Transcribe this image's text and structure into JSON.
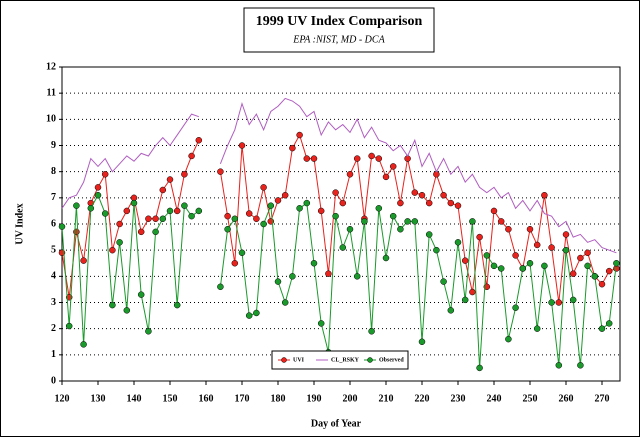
{
  "chart_data": {
    "type": "line",
    "title": "1999 UV Index Comparison",
    "subtitle": "EPA :NIST, MD - DCA",
    "x_label": "Day of Year",
    "y_label": "UV Index",
    "x": [
      120,
      122,
      124,
      126,
      128,
      130,
      132,
      134,
      136,
      138,
      140,
      142,
      144,
      146,
      148,
      150,
      152,
      154,
      156,
      158,
      160,
      162,
      164,
      166,
      168,
      170,
      172,
      174,
      176,
      178,
      180,
      182,
      184,
      186,
      188,
      190,
      192,
      194,
      196,
      198,
      200,
      202,
      204,
      206,
      208,
      210,
      212,
      214,
      216,
      218,
      220,
      222,
      224,
      226,
      228,
      230,
      232,
      234,
      236,
      238,
      240,
      242,
      244,
      246,
      248,
      250,
      252,
      254,
      256,
      258,
      260,
      262,
      264,
      266,
      268,
      270,
      272,
      274
    ],
    "series": [
      {
        "name": "UVI",
        "color": "#e8221c",
        "marker": true,
        "values": [
          4.9,
          3.2,
          5.7,
          4.6,
          6.8,
          7.4,
          7.9,
          5.0,
          6.0,
          6.5,
          7.0,
          5.7,
          6.2,
          6.2,
          7.3,
          7.7,
          6.5,
          7.9,
          8.6,
          9.2,
          null,
          null,
          8.0,
          6.3,
          4.5,
          9.0,
          6.4,
          6.2,
          7.4,
          6.1,
          6.9,
          7.1,
          8.9,
          9.4,
          8.5,
          8.5,
          6.5,
          4.1,
          7.2,
          6.8,
          7.9,
          8.5,
          6.2,
          8.6,
          8.5,
          7.8,
          8.2,
          6.8,
          8.5,
          7.2,
          7.1,
          6.8,
          7.9,
          7.1,
          6.8,
          6.7,
          4.6,
          3.4,
          5.5,
          3.6,
          6.5,
          6.1,
          5.8,
          4.8,
          4.3,
          5.8,
          5.2,
          7.1,
          5.1,
          3.0,
          5.6,
          4.1,
          4.7,
          4.9,
          4.0,
          3.7,
          4.2,
          4.3
        ]
      },
      {
        "name": "CL_RSKY",
        "color": "#b05ec0",
        "marker": false,
        "values": [
          6.6,
          7.0,
          7.1,
          7.6,
          8.5,
          8.2,
          8.5,
          8.0,
          8.3,
          8.6,
          8.4,
          8.7,
          8.6,
          9.0,
          9.3,
          9.0,
          9.4,
          9.8,
          10.2,
          10.1,
          null,
          null,
          8.3,
          9.0,
          9.6,
          10.6,
          9.8,
          10.2,
          9.6,
          10.3,
          10.5,
          10.8,
          10.7,
          10.5,
          10.1,
          10.3,
          9.4,
          9.9,
          9.6,
          9.8,
          9.5,
          10.0,
          9.3,
          9.7,
          9.2,
          9.1,
          8.8,
          9.0,
          8.6,
          9.2,
          8.2,
          8.7,
          8.0,
          8.5,
          7.9,
          8.2,
          7.6,
          7.9,
          7.4,
          7.2,
          7.4,
          7.0,
          7.2,
          6.6,
          6.9,
          6.5,
          6.9,
          6.4,
          6.3,
          5.9,
          6.1,
          5.5,
          5.6,
          5.3,
          5.4,
          5.1,
          5.0,
          4.9
        ]
      },
      {
        "name": "Observed",
        "color": "#1a9a2a",
        "marker": true,
        "values": [
          5.9,
          2.1,
          6.7,
          1.4,
          6.6,
          7.1,
          6.4,
          2.9,
          5.3,
          2.7,
          6.8,
          3.3,
          1.9,
          5.7,
          6.2,
          6.5,
          2.9,
          6.7,
          6.3,
          6.5,
          null,
          null,
          3.6,
          5.8,
          6.2,
          4.9,
          2.5,
          2.6,
          6.0,
          6.7,
          3.8,
          3.0,
          4.0,
          6.6,
          6.8,
          4.5,
          2.2,
          1.1,
          6.3,
          5.1,
          5.8,
          4.0,
          6.1,
          1.9,
          6.6,
          4.7,
          6.3,
          5.8,
          6.1,
          6.1,
          1.5,
          5.6,
          5.0,
          3.8,
          2.7,
          5.3,
          3.1,
          6.1,
          0.5,
          4.8,
          4.4,
          4.3,
          1.6,
          2.8,
          4.3,
          4.5,
          2.0,
          4.4,
          3.0,
          0.6,
          5.0,
          3.1,
          0.6,
          4.4,
          4.0,
          2.0,
          2.2,
          4.5
        ]
      }
    ],
    "xlim": [
      120,
      275
    ],
    "xticks": [
      120,
      130,
      140,
      150,
      160,
      170,
      180,
      190,
      200,
      210,
      220,
      230,
      240,
      250,
      260,
      270
    ],
    "ylim": [
      0,
      12
    ],
    "yticks": [
      0,
      1,
      2,
      3,
      4,
      5,
      6,
      7,
      8,
      9,
      10,
      11,
      12
    ],
    "grid": true,
    "legend": "bottom"
  }
}
